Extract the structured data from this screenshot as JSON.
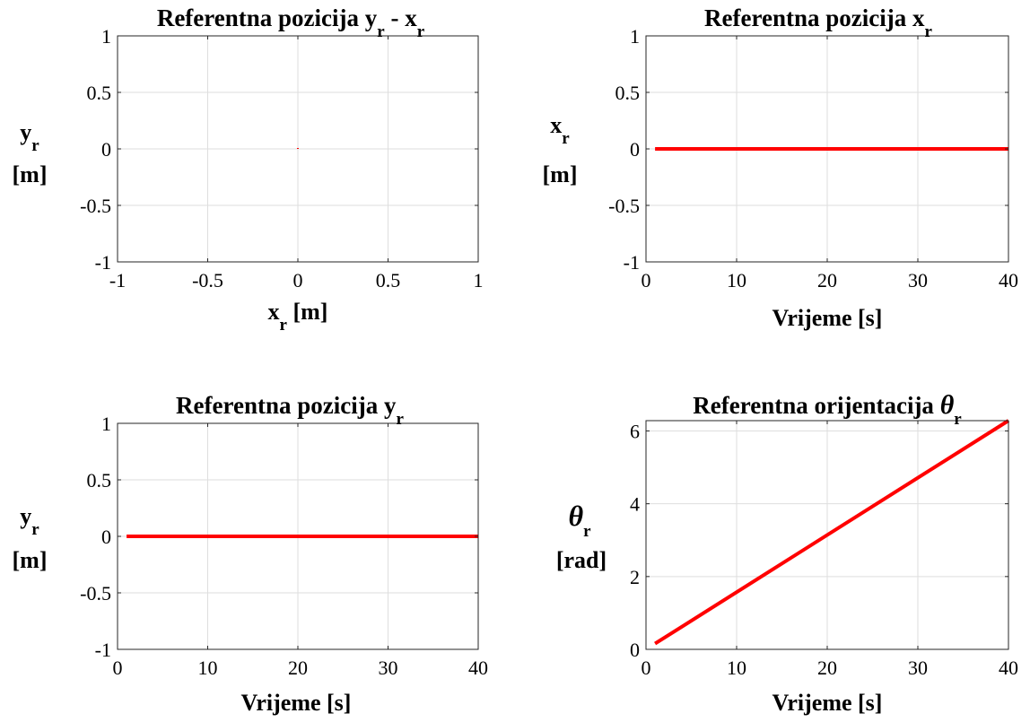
{
  "chart_data": [
    {
      "type": "line",
      "title": "Referentna pozicija y",
      "title_sub": "r",
      "title_tail": " - x",
      "title_tail_sub": "r",
      "xlabel": "x",
      "xlabel_sub": "r",
      "xlabel_tail": " [m]",
      "ylabel": "y",
      "ylabel_sub": "r",
      "ylabel_unit": "[m]",
      "xlim": [
        -1,
        1
      ],
      "ylim": [
        -1,
        1
      ],
      "xticks": [
        -1,
        -0.5,
        0,
        0.5,
        1
      ],
      "xtick_labels": [
        "-1",
        "-0.5",
        "0",
        "0.5",
        "1"
      ],
      "yticks": [
        -1,
        -0.5,
        0,
        0.5,
        1
      ],
      "ytick_labels": [
        "-1",
        "-0.5",
        "0",
        "0.5",
        "1"
      ],
      "grid": true,
      "series": [
        {
          "x": [
            0,
            0
          ],
          "y": [
            0,
            0.008
          ],
          "color": "#ff0000"
        }
      ]
    },
    {
      "type": "line",
      "title": "Referentna pozicija x",
      "title_sub": "r",
      "xlabel": "Vrijeme [s]",
      "ylabel": "x",
      "ylabel_sub": "r",
      "ylabel_unit": "[m]",
      "xlim": [
        0,
        40
      ],
      "ylim": [
        -1,
        1
      ],
      "xticks": [
        0,
        10,
        20,
        30,
        40
      ],
      "xtick_labels": [
        "0",
        "10",
        "20",
        "30",
        "40"
      ],
      "yticks": [
        -1,
        -0.5,
        0,
        0.5,
        1
      ],
      "ytick_labels": [
        "-1",
        "-0.5",
        "0",
        "0.5",
        "1"
      ],
      "grid": true,
      "series": [
        {
          "x": [
            1,
            40
          ],
          "y": [
            0,
            0
          ],
          "color": "#ff0000"
        }
      ]
    },
    {
      "type": "line",
      "title": "Referentna pozicija y",
      "title_sub": "r",
      "xlabel": "Vrijeme [s]",
      "ylabel": "y",
      "ylabel_sub": "r",
      "ylabel_unit": "[m]",
      "xlim": [
        0,
        40
      ],
      "ylim": [
        -1,
        1
      ],
      "xticks": [
        0,
        10,
        20,
        30,
        40
      ],
      "xtick_labels": [
        "0",
        "10",
        "20",
        "30",
        "40"
      ],
      "yticks": [
        -1,
        -0.5,
        0,
        0.5,
        1
      ],
      "ytick_labels": [
        "-1",
        "-0.5",
        "0",
        "0.5",
        "1"
      ],
      "grid": true,
      "series": [
        {
          "x": [
            1,
            40
          ],
          "y": [
            0,
            0
          ],
          "color": "#ff0000"
        }
      ]
    },
    {
      "type": "line",
      "title": "Referentna orijentacija ",
      "title_sym": "θ",
      "title_sub": "r",
      "xlabel": "Vrijeme [s]",
      "ylabel": "θ",
      "ylabel_sub": "r",
      "ylabel_unit": "[rad]",
      "xlim": [
        0,
        40
      ],
      "ylim": [
        0,
        6.283
      ],
      "xticks": [
        0,
        10,
        20,
        30,
        40
      ],
      "xtick_labels": [
        "0",
        "10",
        "20",
        "30",
        "40"
      ],
      "yticks": [
        0,
        2,
        4,
        6
      ],
      "ytick_labels": [
        "0",
        "2",
        "4",
        "6"
      ],
      "grid": true,
      "series": [
        {
          "x": [
            1,
            40
          ],
          "y": [
            0.157,
            6.283
          ],
          "color": "#ff0000"
        }
      ]
    }
  ]
}
